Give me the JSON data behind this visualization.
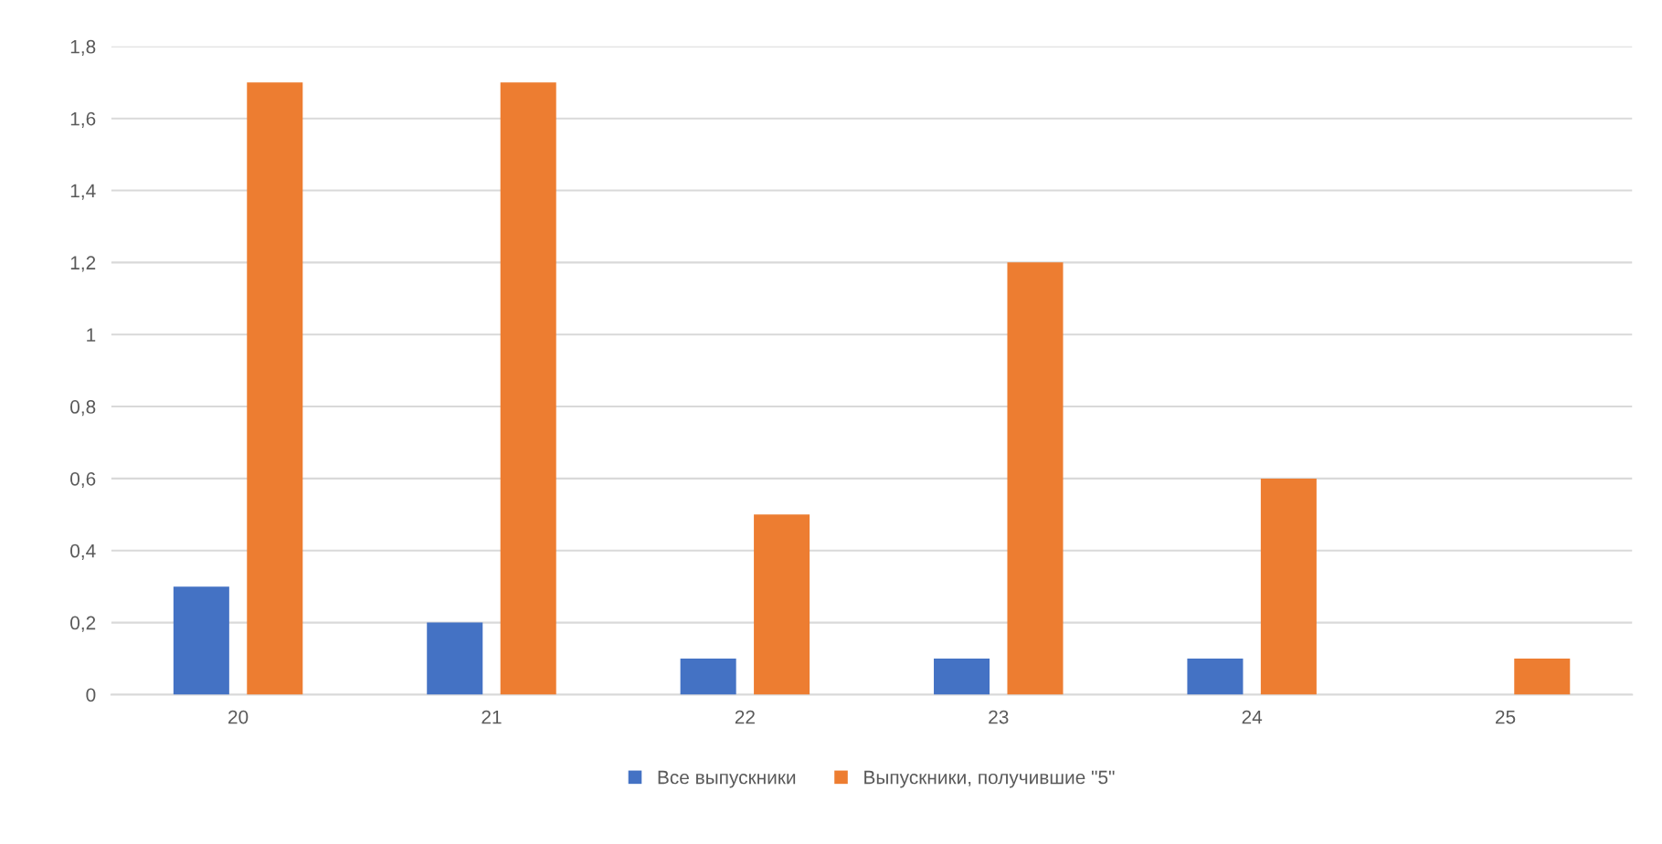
{
  "chart_data": {
    "type": "bar",
    "categories": [
      "20",
      "21",
      "22",
      "23",
      "24",
      "25"
    ],
    "series": [
      {
        "name": "Все выпускники",
        "color": "#4472c4",
        "values": [
          0.3,
          0.2,
          0.1,
          0.1,
          0.1,
          0
        ]
      },
      {
        "name": "Выпускники, получившие \"5\"",
        "color": "#ed7d31",
        "values": [
          1.7,
          1.7,
          0.5,
          1.2,
          0.6,
          0.1
        ]
      }
    ],
    "ylim": [
      0,
      1.8
    ],
    "yticks": [
      0,
      {
        "value": 0.2,
        "label": "0,2"
      },
      {
        "value": 0.4,
        "label": "0,4"
      },
      {
        "value": 0.6,
        "label": "0,6"
      },
      {
        "value": 0.8,
        "label": "0,8"
      },
      1,
      {
        "value": 1.2,
        "label": "1,2"
      },
      {
        "value": 1.4,
        "label": "1,4"
      },
      {
        "value": 1.6,
        "label": "1,6"
      },
      {
        "value": 1.8,
        "label": "1,8"
      }
    ],
    "grid": "y",
    "legend": "bottom"
  }
}
